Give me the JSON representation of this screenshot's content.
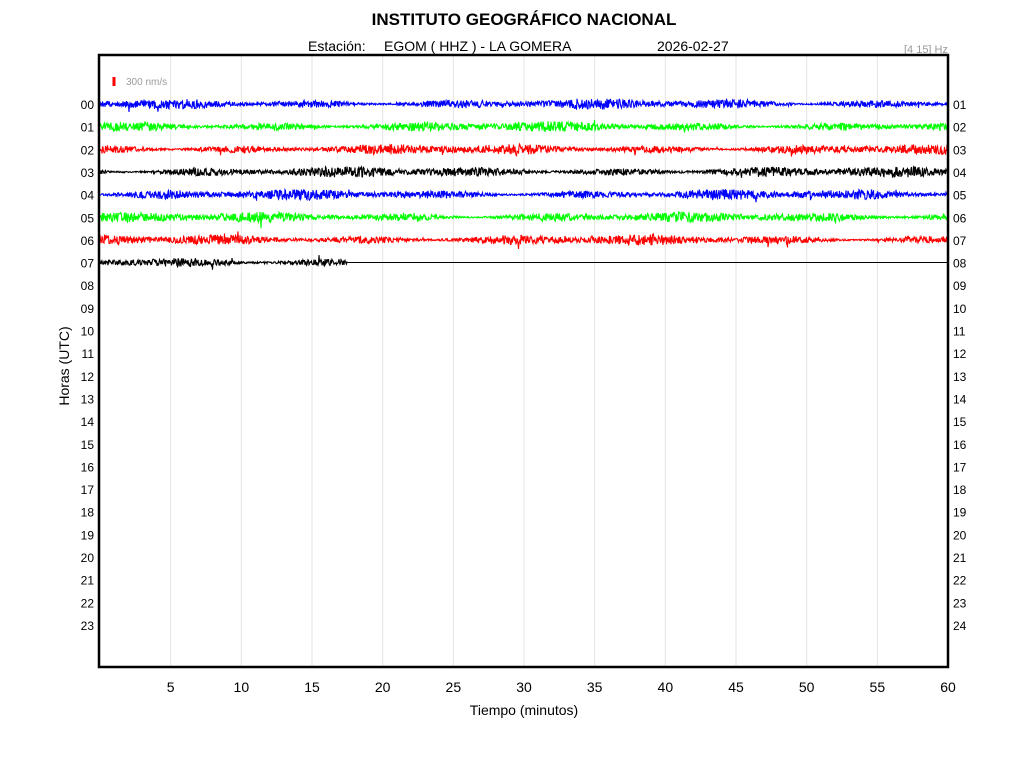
{
  "header": {
    "title": "INSTITUTO GEOGRÁFICO NACIONAL",
    "station_label": "Estación:",
    "station_value": "EGOM ( HHZ ) - LA GOMERA",
    "date": "2026-02-27",
    "filter_text": "[4 15] Hz"
  },
  "scale": {
    "label": "300 nm/s",
    "color": "#ff0000"
  },
  "chart_data": {
    "type": "line",
    "title": "INSTITUTO GEOGRÁFICO NACIONAL",
    "xlabel": "Tiempo (minutos)",
    "ylabel": "Horas (UTC)",
    "xlim": [
      0,
      60
    ],
    "x_ticks": [
      5,
      10,
      15,
      20,
      25,
      30,
      35,
      40,
      45,
      50,
      55,
      60
    ],
    "y_ticks_left": [
      "00",
      "01",
      "02",
      "03",
      "04",
      "05",
      "06",
      "07",
      "08",
      "09",
      "10",
      "11",
      "12",
      "13",
      "14",
      "15",
      "16",
      "17",
      "18",
      "19",
      "20",
      "21",
      "22",
      "23"
    ],
    "y_ticks_right": [
      "01",
      "02",
      "03",
      "04",
      "05",
      "06",
      "07",
      "08",
      "09",
      "10",
      "11",
      "12",
      "13",
      "14",
      "15",
      "16",
      "17",
      "18",
      "19",
      "20",
      "21",
      "22",
      "23",
      "24"
    ],
    "grid": "vertical",
    "color_cycle": [
      "#0000ff",
      "#00ff00",
      "#ff0000",
      "#000000"
    ],
    "series": [
      {
        "hour": "00",
        "x_start": 0,
        "x_end": 60,
        "color": "#0000ff"
      },
      {
        "hour": "01",
        "x_start": 0,
        "x_end": 60,
        "color": "#00ff00"
      },
      {
        "hour": "02",
        "x_start": 0,
        "x_end": 60,
        "color": "#ff0000"
      },
      {
        "hour": "03",
        "x_start": 0,
        "x_end": 60,
        "color": "#000000"
      },
      {
        "hour": "04",
        "x_start": 0,
        "x_end": 60,
        "color": "#0000ff"
      },
      {
        "hour": "05",
        "x_start": 0,
        "x_end": 60,
        "color": "#00ff00"
      },
      {
        "hour": "06",
        "x_start": 0,
        "x_end": 60,
        "color": "#ff0000"
      },
      {
        "hour": "07",
        "x_start": 0,
        "x_end": 17.5,
        "color": "#000000"
      }
    ]
  }
}
